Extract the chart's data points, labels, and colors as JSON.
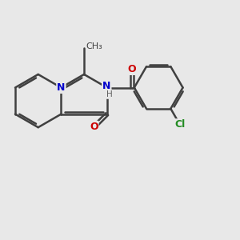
{
  "background_color": "#e8e8e8",
  "bond_color": "#404040",
  "N_color": "#0000cc",
  "O_color": "#cc0000",
  "Cl_color": "#228b22",
  "H_color": "#606060",
  "line_width": 1.8,
  "figsize": [
    3.0,
    3.0
  ],
  "dpi": 100,
  "xlim": [
    -1.2,
    5.2
  ],
  "ylim": [
    -2.6,
    2.4
  ]
}
